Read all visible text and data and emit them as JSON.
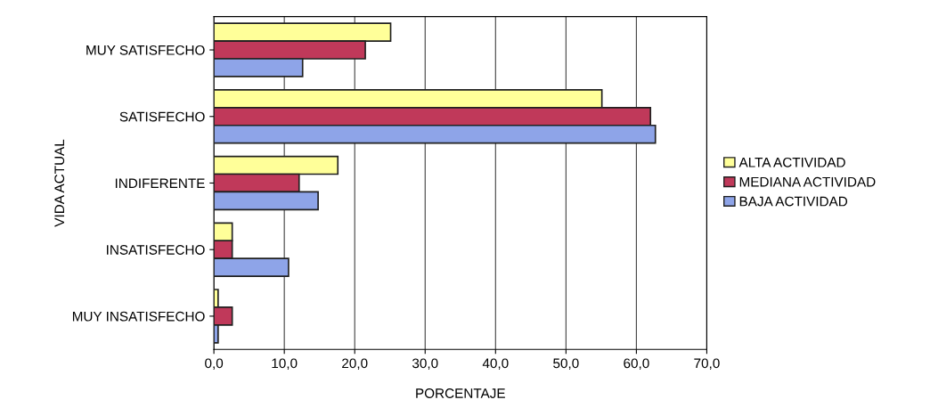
{
  "chart_data": {
    "type": "bar",
    "orientation": "horizontal",
    "xlabel": "PORCENTAJE",
    "ylabel": "VIDA ACTUAL",
    "categories": [
      "MUY SATISFECHO",
      "SATISFECHO",
      "INDIFERENTE",
      "INSATISFECHO",
      "MUY INSATISFECHO"
    ],
    "series": [
      {
        "name": "ALTA ACTIVIDAD",
        "color": "#ffff99",
        "values": [
          25.1,
          55.1,
          17.6,
          2.6,
          0.6
        ]
      },
      {
        "name": "MEDIANA ACTIVIDAD",
        "color": "#c0395a",
        "values": [
          21.5,
          62.0,
          12.1,
          2.6,
          2.6
        ]
      },
      {
        "name": "BAJA ACTIVIDAD",
        "color": "#8ea4e8",
        "values": [
          12.6,
          62.7,
          14.8,
          10.6,
          0.6
        ]
      }
    ],
    "xlim": [
      0,
      70
    ],
    "xticks": [
      {
        "value": 0,
        "label": "0,0"
      },
      {
        "value": 10,
        "label": "10,0"
      },
      {
        "value": 20,
        "label": "20,0"
      },
      {
        "value": 30,
        "label": "30,0"
      },
      {
        "value": 40,
        "label": "40,0"
      },
      {
        "value": 50,
        "label": "50,0"
      },
      {
        "value": 60,
        "label": "60,0"
      },
      {
        "value": 70,
        "label": "70,0"
      }
    ],
    "grid": "x",
    "legend": "right"
  }
}
